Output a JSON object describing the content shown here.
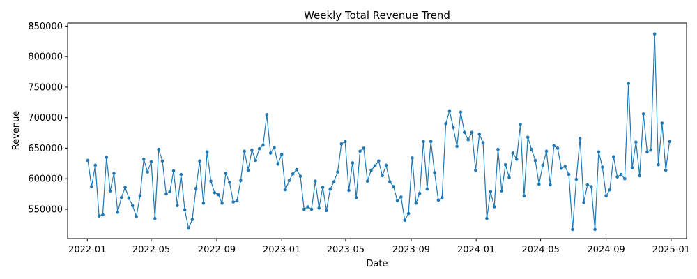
{
  "chart_data": {
    "type": "line",
    "title": "Weekly Total Revenue Trend",
    "xlabel": "Date",
    "ylabel": "Revenue",
    "x_axis_type": "date",
    "xlim": [
      "2021-11-25",
      "2025-01-30"
    ],
    "ylim": [
      502000,
      855000
    ],
    "x_ticks": [
      "2022-01",
      "2022-05",
      "2022-09",
      "2023-01",
      "2023-05",
      "2023-09",
      "2024-01",
      "2024-05",
      "2024-09",
      "2025-01"
    ],
    "y_ticks": [
      550000,
      600000,
      650000,
      700000,
      750000,
      800000,
      850000
    ],
    "grid": false,
    "legend": "none",
    "line_color": "#1f77b4",
    "series": [
      {
        "x": [
          "2022-01-02",
          "2022-01-09",
          "2022-01-16",
          "2022-01-23",
          "2022-01-30",
          "2022-02-06",
          "2022-02-13",
          "2022-02-20",
          "2022-02-27",
          "2022-03-06",
          "2022-03-13",
          "2022-03-20",
          "2022-03-27",
          "2022-04-03",
          "2022-04-10",
          "2022-04-17",
          "2022-04-24",
          "2022-05-01",
          "2022-05-08",
          "2022-05-15",
          "2022-05-22",
          "2022-05-29",
          "2022-06-05",
          "2022-06-12",
          "2022-06-19",
          "2022-06-26",
          "2022-07-03",
          "2022-07-10",
          "2022-07-17",
          "2022-07-24",
          "2022-07-31",
          "2022-08-07",
          "2022-08-14",
          "2022-08-21",
          "2022-08-28",
          "2022-09-04",
          "2022-09-11",
          "2022-09-18",
          "2022-09-25",
          "2022-10-02",
          "2022-10-09",
          "2022-10-16",
          "2022-10-23",
          "2022-10-30",
          "2022-11-06",
          "2022-11-13",
          "2022-11-20",
          "2022-11-27",
          "2022-12-04",
          "2022-12-11",
          "2022-12-18",
          "2022-12-25",
          "2023-01-01",
          "2023-01-08",
          "2023-01-15",
          "2023-01-22",
          "2023-01-29",
          "2023-02-05",
          "2023-02-12",
          "2023-02-19",
          "2023-02-26",
          "2023-03-05",
          "2023-03-12",
          "2023-03-19",
          "2023-03-26",
          "2023-04-02",
          "2023-04-09",
          "2023-04-16",
          "2023-04-23",
          "2023-04-30",
          "2023-05-07",
          "2023-05-14",
          "2023-05-21",
          "2023-05-28",
          "2023-06-04",
          "2023-06-11",
          "2023-06-18",
          "2023-06-25",
          "2023-07-02",
          "2023-07-09",
          "2023-07-16",
          "2023-07-23",
          "2023-07-30",
          "2023-08-06",
          "2023-08-13",
          "2023-08-20",
          "2023-08-27",
          "2023-09-03",
          "2023-09-10",
          "2023-09-17",
          "2023-09-24",
          "2023-10-01",
          "2023-10-08",
          "2023-10-15",
          "2023-10-22",
          "2023-10-29",
          "2023-11-05",
          "2023-11-12",
          "2023-11-19",
          "2023-11-26",
          "2023-12-03",
          "2023-12-10",
          "2023-12-17",
          "2023-12-24",
          "2023-12-31",
          "2024-01-07",
          "2024-01-14",
          "2024-01-21",
          "2024-01-28",
          "2024-02-04",
          "2024-02-11",
          "2024-02-18",
          "2024-02-25",
          "2024-03-03",
          "2024-03-10",
          "2024-03-17",
          "2024-03-24",
          "2024-03-31",
          "2024-04-07",
          "2024-04-14",
          "2024-04-21",
          "2024-04-28",
          "2024-05-05",
          "2024-05-12",
          "2024-05-19",
          "2024-05-26",
          "2024-06-02",
          "2024-06-09",
          "2024-06-16",
          "2024-06-23",
          "2024-06-30",
          "2024-07-07",
          "2024-07-14",
          "2024-07-21",
          "2024-07-28",
          "2024-08-04",
          "2024-08-11",
          "2024-08-18",
          "2024-08-25",
          "2024-09-01",
          "2024-09-08",
          "2024-09-15",
          "2024-09-22",
          "2024-09-29",
          "2024-10-06",
          "2024-10-13",
          "2024-10-20",
          "2024-10-27",
          "2024-11-03",
          "2024-11-10",
          "2024-11-17",
          "2024-11-24",
          "2024-12-01",
          "2024-12-08",
          "2024-12-15",
          "2024-12-22",
          "2024-12-29"
        ],
        "y": [
          630000,
          587000,
          622000,
          539000,
          541000,
          635000,
          580000,
          609000,
          545000,
          569000,
          586000,
          568000,
          556000,
          538000,
          572000,
          632000,
          611000,
          628000,
          535000,
          648000,
          629000,
          575000,
          579000,
          613000,
          556000,
          607000,
          549000,
          519000,
          533000,
          584000,
          629000,
          560000,
          644000,
          596000,
          577000,
          574000,
          560000,
          609000,
          594000,
          562000,
          564000,
          597000,
          645000,
          614000,
          647000,
          630000,
          649000,
          655000,
          705000,
          642000,
          651000,
          624000,
          640000,
          582000,
          597000,
          608000,
          615000,
          604000,
          550000,
          554000,
          550000,
          596000,
          552000,
          586000,
          548000,
          583000,
          595000,
          611000,
          657000,
          661000,
          581000,
          626000,
          569000,
          645000,
          650000,
          596000,
          614000,
          621000,
          629000,
          605000,
          622000,
          595000,
          587000,
          564000,
          570000,
          532000,
          543000,
          634000,
          560000,
          576000,
          661000,
          583000,
          661000,
          610000,
          565000,
          569000,
          690000,
          711000,
          684000,
          653000,
          709000,
          676000,
          664000,
          676000,
          614000,
          673000,
          659000,
          535000,
          579000,
          554000,
          648000,
          580000,
          623000,
          602000,
          642000,
          632000,
          689000,
          572000,
          668000,
          648000,
          630000,
          591000,
          622000,
          645000,
          590000,
          654000,
          650000,
          617000,
          620000,
          607000,
          517000,
          599000,
          666000,
          561000,
          590000,
          587000,
          517000,
          644000,
          619000,
          572000,
          582000,
          636000,
          603000,
          607000,
          600000,
          756000,
          618000,
          660000,
          605000,
          706000,
          644000,
          647000,
          837000,
          623000,
          691000,
          614000,
          661000
        ]
      }
    ]
  }
}
